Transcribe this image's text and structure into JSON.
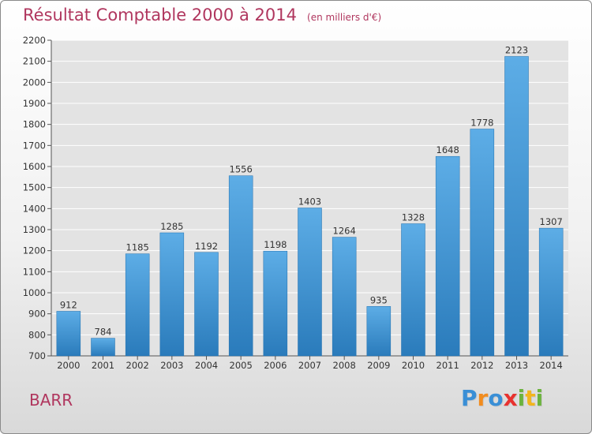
{
  "chart_data": {
    "type": "bar",
    "title": "Résultat Comptable 2000 à 2014",
    "subtitle": "(en milliers d'€)",
    "categories": [
      "2000",
      "2001",
      "2002",
      "2003",
      "2004",
      "2005",
      "2006",
      "2007",
      "2008",
      "2009",
      "2010",
      "2011",
      "2012",
      "2013",
      "2014"
    ],
    "values": [
      912,
      784,
      1185,
      1285,
      1192,
      1556,
      1198,
      1403,
      1264,
      935,
      1328,
      1648,
      1778,
      2123,
      1307
    ],
    "ylim": [
      700,
      2200
    ],
    "yticks": [
      700,
      800,
      900,
      1000,
      1100,
      1200,
      1300,
      1400,
      1500,
      1600,
      1700,
      1800,
      1900,
      2000,
      2100,
      2200
    ],
    "grid": true,
    "xlabel": "",
    "ylabel": "",
    "bar_color_top": "#5dade6",
    "bar_color_bottom": "#2a7bbb",
    "grid_color": "#ffffff",
    "title_color": "#b0365e"
  },
  "commune": "BARR",
  "logo": {
    "text": "Proxiti",
    "letters": [
      "P",
      "r",
      "o",
      "x",
      "i",
      "t",
      "i"
    ],
    "colors": [
      "#3a8fd6",
      "#f28c1e",
      "#3a8fd6",
      "#e8322f",
      "#6cb33e",
      "#f2b51e",
      "#6cb33e"
    ]
  }
}
